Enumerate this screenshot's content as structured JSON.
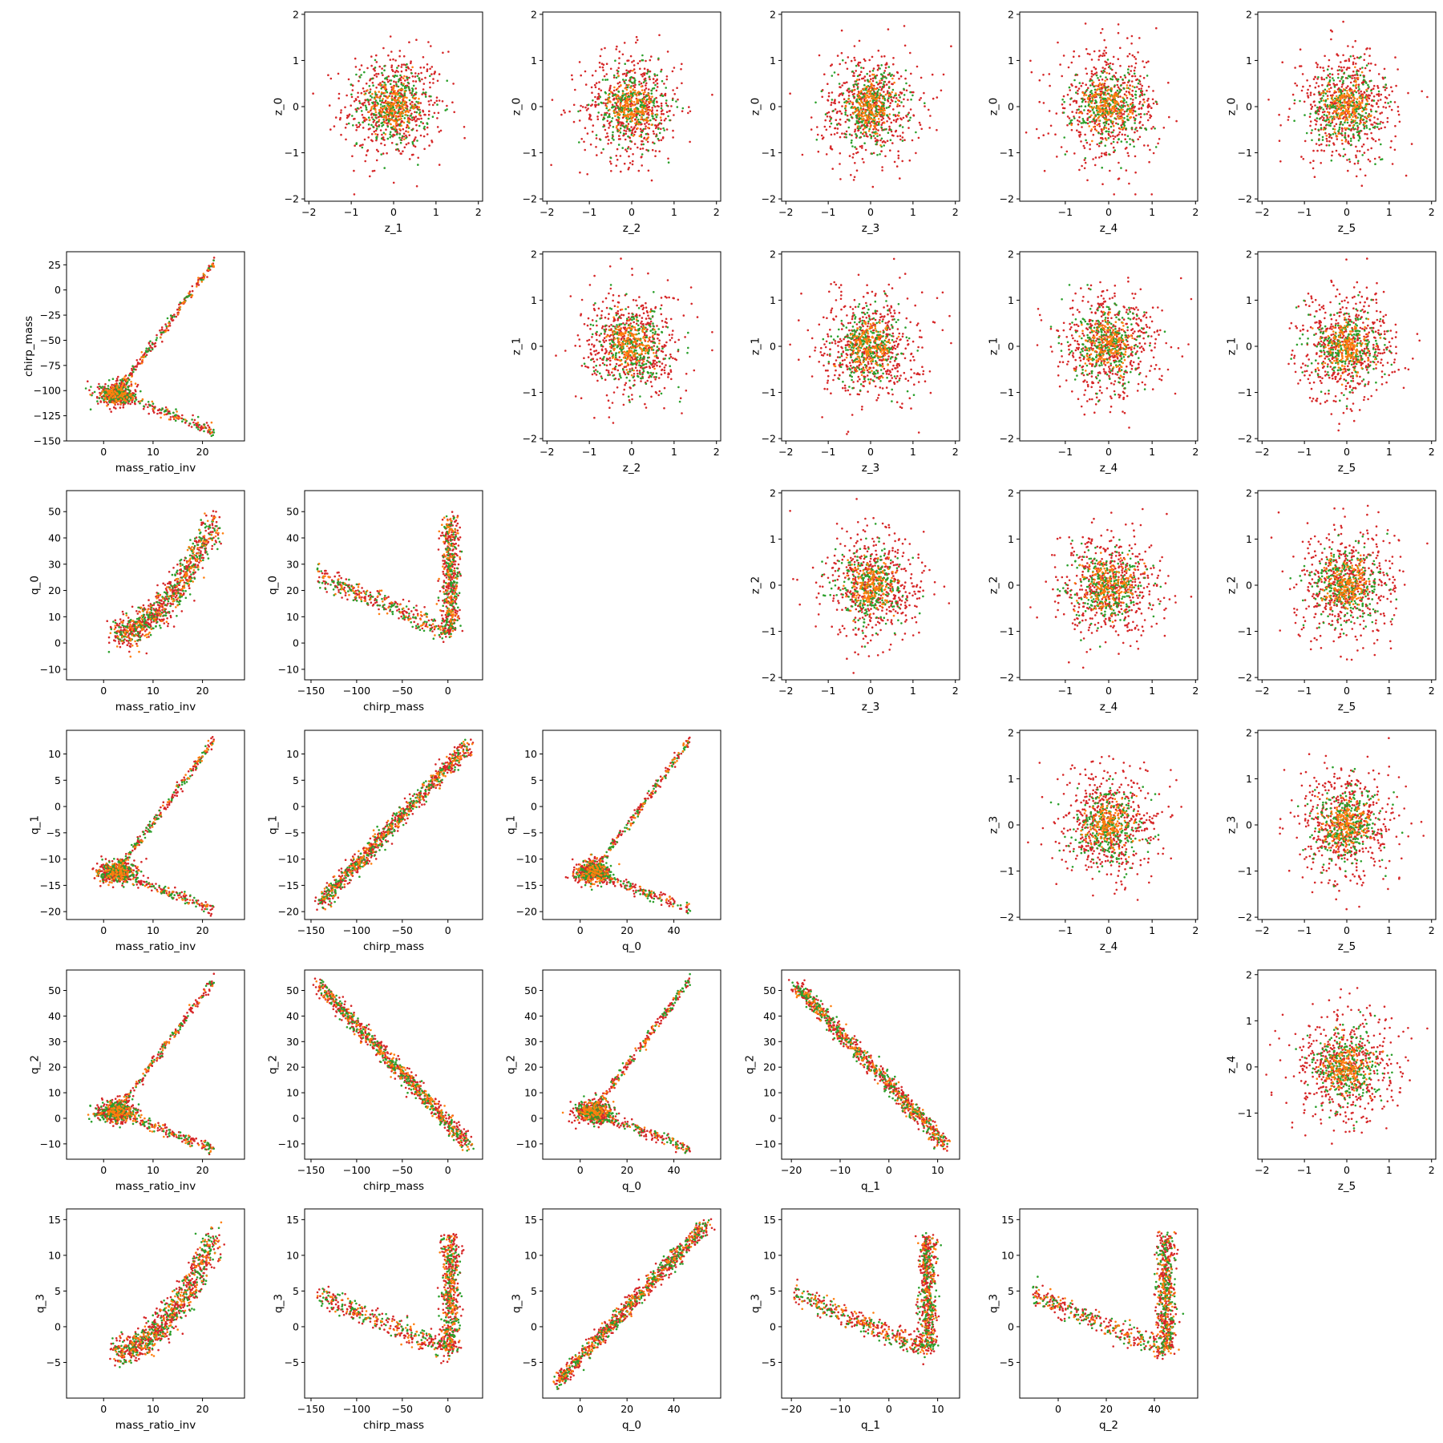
{
  "figure": {
    "description_free": true,
    "type": "pairwise scatter matrix"
  },
  "colors": {
    "series_1": "#d62728",
    "series_2": "#2ca02c",
    "series_3": "#ff7f0e",
    "axes": "#000000",
    "background": "#ffffff"
  },
  "chart_data": [
    {
      "type": "scatter",
      "xlabel": "z_1",
      "ylabel": "z_0",
      "kind": "gauss",
      "xticks": [
        "−2",
        "−1",
        "0",
        "1",
        "2"
      ],
      "yticks": [
        "−2",
        "−1",
        "0",
        "1",
        "2"
      ],
      "xlim": [
        -2.1,
        2.1
      ],
      "ylim": [
        -2.05,
        2.05
      ],
      "xtick_values": [
        -2,
        -1,
        0,
        1,
        2
      ],
      "ytick_values": [
        -2,
        -1,
        0,
        1,
        2
      ]
    },
    {
      "type": "scatter",
      "xlabel": "z_2",
      "ylabel": "z_0",
      "kind": "gauss",
      "xticks": [
        "−2",
        "−1",
        "0",
        "1",
        "2"
      ],
      "yticks": [
        "−2",
        "−1",
        "0",
        "1",
        "2"
      ],
      "xlim": [
        -2.1,
        2.1
      ],
      "ylim": [
        -2.05,
        2.05
      ],
      "xtick_values": [
        -2,
        -1,
        0,
        1,
        2
      ],
      "ytick_values": [
        -2,
        -1,
        0,
        1,
        2
      ]
    },
    {
      "type": "scatter",
      "xlabel": "z_3",
      "ylabel": "z_0",
      "kind": "gauss",
      "xticks": [
        "−2",
        "−1",
        "0",
        "1",
        "2"
      ],
      "yticks": [
        "−2",
        "−1",
        "0",
        "1",
        "2"
      ],
      "xlim": [
        -2.1,
        2.1
      ],
      "ylim": [
        -2.05,
        2.05
      ],
      "xtick_values": [
        -2,
        -1,
        0,
        1,
        2
      ],
      "ytick_values": [
        -2,
        -1,
        0,
        1,
        2
      ]
    },
    {
      "type": "scatter",
      "xlabel": "z_4",
      "ylabel": "z_0",
      "kind": "gauss",
      "xticks": [
        "−1",
        "0",
        "1",
        "2"
      ],
      "yticks": [
        "−2",
        "−1",
        "0",
        "1",
        "2"
      ],
      "xlim": [
        -2.05,
        2.05
      ],
      "ylim": [
        -2.05,
        2.05
      ],
      "xtick_values": [
        -1,
        0,
        1,
        2
      ],
      "ytick_values": [
        -2,
        -1,
        0,
        1,
        2
      ]
    },
    {
      "type": "scatter",
      "xlabel": "z_5",
      "ylabel": "z_0",
      "kind": "gauss",
      "xticks": [
        "−2",
        "−1",
        "0",
        "1",
        "2"
      ],
      "yticks": [
        "−2",
        "−1",
        "0",
        "1",
        "2"
      ],
      "xlim": [
        -2.1,
        2.1
      ],
      "ylim": [
        -2.05,
        2.05
      ],
      "xtick_values": [
        -2,
        -1,
        0,
        1,
        2
      ],
      "ytick_values": [
        -2,
        -1,
        0,
        1,
        2
      ]
    },
    {
      "type": "scatter",
      "xlabel": "mass_ratio_inv",
      "ylabel": "chirp_mass",
      "kind": "fork",
      "xticks": [
        "0",
        "10",
        "20"
      ],
      "yticks": [
        "−150",
        "−125",
        "−100",
        "−75",
        "−50",
        "−25",
        "0",
        "25"
      ],
      "xlim": [
        -7.5,
        28.5
      ],
      "ylim": [
        -150,
        38
      ],
      "xtick_values": [
        0,
        10,
        20
      ],
      "ytick_values": [
        -150,
        -125,
        -100,
        -75,
        -50,
        -25,
        0,
        25
      ]
    },
    {
      "type": "scatter",
      "xlabel": "z_2",
      "ylabel": "z_1",
      "kind": "gauss",
      "xticks": [
        "−2",
        "−1",
        "0",
        "1",
        "2"
      ],
      "yticks": [
        "−2",
        "−1",
        "0",
        "1",
        "2"
      ],
      "xlim": [
        -2.1,
        2.1
      ],
      "ylim": [
        -2.05,
        2.05
      ],
      "xtick_values": [
        -2,
        -1,
        0,
        1,
        2
      ],
      "ytick_values": [
        -2,
        -1,
        0,
        1,
        2
      ]
    },
    {
      "type": "scatter",
      "xlabel": "z_3",
      "ylabel": "z_1",
      "kind": "gauss",
      "xticks": [
        "−2",
        "−1",
        "0",
        "1",
        "2"
      ],
      "yticks": [
        "−2",
        "−1",
        "0",
        "1",
        "2"
      ],
      "xlim": [
        -2.1,
        2.1
      ],
      "ylim": [
        -2.05,
        2.05
      ],
      "xtick_values": [
        -2,
        -1,
        0,
        1,
        2
      ],
      "ytick_values": [
        -2,
        -1,
        0,
        1,
        2
      ]
    },
    {
      "type": "scatter",
      "xlabel": "z_4",
      "ylabel": "z_1",
      "kind": "gauss",
      "xticks": [
        "−1",
        "0",
        "1",
        "2"
      ],
      "yticks": [
        "−2",
        "−1",
        "0",
        "1",
        "2"
      ],
      "xlim": [
        -2.05,
        2.05
      ],
      "ylim": [
        -2.05,
        2.05
      ],
      "xtick_values": [
        -1,
        0,
        1,
        2
      ],
      "ytick_values": [
        -2,
        -1,
        0,
        1,
        2
      ]
    },
    {
      "type": "scatter",
      "xlabel": "z_5",
      "ylabel": "z_1",
      "kind": "gauss",
      "xticks": [
        "−2",
        "−1",
        "0",
        "1",
        "2"
      ],
      "yticks": [
        "−2",
        "−1",
        "0",
        "1",
        "2"
      ],
      "xlim": [
        -2.1,
        2.1
      ],
      "ylim": [
        -2.05,
        2.05
      ],
      "xtick_values": [
        -2,
        -1,
        0,
        1,
        2
      ],
      "ytick_values": [
        -2,
        -1,
        0,
        1,
        2
      ]
    },
    {
      "type": "scatter",
      "xlabel": "mass_ratio_inv",
      "ylabel": "q_0",
      "kind": "banana",
      "xticks": [
        "0",
        "10",
        "20"
      ],
      "yticks": [
        "−10",
        "0",
        "10",
        "20",
        "30",
        "40",
        "50"
      ],
      "xlim": [
        -7.5,
        28.5
      ],
      "ylim": [
        -14,
        58
      ],
      "xtick_values": [
        0,
        10,
        20
      ],
      "ytick_values": [
        -10,
        0,
        10,
        20,
        30,
        40,
        50
      ]
    },
    {
      "type": "scatter",
      "xlabel": "chirp_mass",
      "ylabel": "q_0",
      "kind": "vee",
      "xticks": [
        "−150",
        "−100",
        "−50",
        "0"
      ],
      "yticks": [
        "−10",
        "0",
        "10",
        "20",
        "30",
        "40",
        "50"
      ],
      "xlim": [
        -157,
        38
      ],
      "ylim": [
        -14,
        58
      ],
      "xtick_values": [
        -150,
        -100,
        -50,
        0
      ],
      "ytick_values": [
        -10,
        0,
        10,
        20,
        30,
        40,
        50
      ]
    },
    {
      "type": "scatter",
      "xlabel": "z_3",
      "ylabel": "z_2",
      "kind": "gauss",
      "xticks": [
        "−2",
        "−1",
        "0",
        "1",
        "2"
      ],
      "yticks": [
        "−2",
        "−1",
        "0",
        "1",
        "2"
      ],
      "xlim": [
        -2.1,
        2.1
      ],
      "ylim": [
        -2.05,
        2.05
      ],
      "xtick_values": [
        -2,
        -1,
        0,
        1,
        2
      ],
      "ytick_values": [
        -2,
        -1,
        0,
        1,
        2
      ]
    },
    {
      "type": "scatter",
      "xlabel": "z_4",
      "ylabel": "z_2",
      "kind": "gauss",
      "xticks": [
        "−1",
        "0",
        "1",
        "2"
      ],
      "yticks": [
        "−2",
        "−1",
        "0",
        "1",
        "2"
      ],
      "xlim": [
        -2.05,
        2.05
      ],
      "ylim": [
        -2.05,
        2.05
      ],
      "xtick_values": [
        -1,
        0,
        1,
        2
      ],
      "ytick_values": [
        -2,
        -1,
        0,
        1,
        2
      ]
    },
    {
      "type": "scatter",
      "xlabel": "z_5",
      "ylabel": "z_2",
      "kind": "gauss",
      "xticks": [
        "−2",
        "−1",
        "0",
        "1",
        "2"
      ],
      "yticks": [
        "−2",
        "−1",
        "0",
        "1",
        "2"
      ],
      "xlim": [
        -2.1,
        2.1
      ],
      "ylim": [
        -2.05,
        2.05
      ],
      "xtick_values": [
        -2,
        -1,
        0,
        1,
        2
      ],
      "ytick_values": [
        -2,
        -1,
        0,
        1,
        2
      ]
    },
    {
      "type": "scatter",
      "xlabel": "mass_ratio_inv",
      "ylabel": "q_1",
      "kind": "fork",
      "xticks": [
        "0",
        "10",
        "20"
      ],
      "yticks": [
        "−20",
        "−15",
        "−10",
        "−5",
        "0",
        "5",
        "10"
      ],
      "xlim": [
        -7.5,
        28.5
      ],
      "ylim": [
        -21.5,
        14.5
      ],
      "xtick_values": [
        0,
        10,
        20
      ],
      "ytick_values": [
        -20,
        -15,
        -10,
        -5,
        0,
        5,
        10
      ]
    },
    {
      "type": "scatter",
      "xlabel": "chirp_mass",
      "ylabel": "q_1",
      "kind": "diag",
      "xticks": [
        "−150",
        "−100",
        "−50",
        "0"
      ],
      "yticks": [
        "−20",
        "−15",
        "−10",
        "−5",
        "0",
        "5",
        "10"
      ],
      "xlim": [
        -157,
        38
      ],
      "ylim": [
        -21.5,
        14.5
      ],
      "xtick_values": [
        -150,
        -100,
        -50,
        0
      ],
      "ytick_values": [
        -20,
        -15,
        -10,
        -5,
        0,
        5,
        10
      ]
    },
    {
      "type": "scatter",
      "xlabel": "q_0",
      "ylabel": "q_1",
      "kind": "fork",
      "xticks": [
        "0",
        "20",
        "40"
      ],
      "yticks": [
        "−20",
        "−15",
        "−10",
        "−5",
        "0",
        "5",
        "10"
      ],
      "xlim": [
        -16,
        60
      ],
      "ylim": [
        -21.5,
        14.5
      ],
      "xtick_values": [
        0,
        20,
        40
      ],
      "ytick_values": [
        -20,
        -15,
        -10,
        -5,
        0,
        5,
        10
      ]
    },
    {
      "type": "scatter",
      "xlabel": "z_4",
      "ylabel": "z_3",
      "kind": "gauss",
      "xticks": [
        "−1",
        "0",
        "1",
        "2"
      ],
      "yticks": [
        "−2",
        "−1",
        "0",
        "1",
        "2"
      ],
      "xlim": [
        -2.05,
        2.05
      ],
      "ylim": [
        -2.05,
        2.05
      ],
      "xtick_values": [
        -1,
        0,
        1,
        2
      ],
      "ytick_values": [
        -2,
        -1,
        0,
        1,
        2
      ]
    },
    {
      "type": "scatter",
      "xlabel": "z_5",
      "ylabel": "z_3",
      "kind": "gauss",
      "xticks": [
        "−2",
        "−1",
        "0",
        "1",
        "2"
      ],
      "yticks": [
        "−2",
        "−1",
        "0",
        "1",
        "2"
      ],
      "xlim": [
        -2.1,
        2.1
      ],
      "ylim": [
        -2.05,
        2.05
      ],
      "xtick_values": [
        -2,
        -1,
        0,
        1,
        2
      ],
      "ytick_values": [
        -2,
        -1,
        0,
        1,
        2
      ]
    },
    {
      "type": "scatter",
      "xlabel": "mass_ratio_inv",
      "ylabel": "q_2",
      "kind": "fork",
      "xticks": [
        "0",
        "10",
        "20"
      ],
      "yticks": [
        "−10",
        "0",
        "10",
        "20",
        "30",
        "40",
        "50"
      ],
      "xlim": [
        -7.5,
        28.5
      ],
      "ylim": [
        -16,
        58
      ],
      "xtick_values": [
        0,
        10,
        20
      ],
      "ytick_values": [
        -10,
        0,
        10,
        20,
        30,
        40,
        50
      ]
    },
    {
      "type": "scatter",
      "xlabel": "chirp_mass",
      "ylabel": "q_2",
      "kind": "diag",
      "xticks": [
        "−150",
        "−100",
        "−50",
        "0"
      ],
      "yticks": [
        "−10",
        "0",
        "10",
        "20",
        "30",
        "40",
        "50"
      ],
      "xlim": [
        -157,
        38
      ],
      "ylim": [
        -16,
        58
      ],
      "xtick_values": [
        -150,
        -100,
        -50,
        0
      ],
      "ytick_values": [
        -10,
        0,
        10,
        20,
        30,
        40,
        50
      ]
    },
    {
      "type": "scatter",
      "xlabel": "q_0",
      "ylabel": "q_2",
      "kind": "fork",
      "xticks": [
        "0",
        "20",
        "40"
      ],
      "yticks": [
        "−10",
        "0",
        "10",
        "20",
        "30",
        "40",
        "50"
      ],
      "xlim": [
        -16,
        60
      ],
      "ylim": [
        -16,
        58
      ],
      "xtick_values": [
        0,
        20,
        40
      ],
      "ytick_values": [
        -10,
        0,
        10,
        20,
        30,
        40,
        50
      ]
    },
    {
      "type": "scatter",
      "xlabel": "q_1",
      "ylabel": "q_2",
      "kind": "diag",
      "xticks": [
        "−20",
        "−10",
        "0",
        "10"
      ],
      "yticks": [
        "−10",
        "0",
        "10",
        "20",
        "30",
        "40",
        "50"
      ],
      "xlim": [
        -22,
        14.5
      ],
      "ylim": [
        -16,
        58
      ],
      "xtick_values": [
        -20,
        -10,
        0,
        10
      ],
      "ytick_values": [
        -10,
        0,
        10,
        20,
        30,
        40,
        50
      ]
    },
    {
      "type": "scatter",
      "xlabel": "z_5",
      "ylabel": "z_4",
      "kind": "gauss",
      "xticks": [
        "−2",
        "−1",
        "0",
        "1",
        "2"
      ],
      "yticks": [
        "−1",
        "0",
        "1",
        "2"
      ],
      "xlim": [
        -2.1,
        2.1
      ],
      "ylim": [
        -2.0,
        2.1
      ],
      "xtick_values": [
        -2,
        -1,
        0,
        1,
        2
      ],
      "ytick_values": [
        -1,
        0,
        1,
        2
      ]
    },
    {
      "type": "scatter",
      "xlabel": "mass_ratio_inv",
      "ylabel": "q_3",
      "kind": "banana",
      "xticks": [
        "0",
        "10",
        "20"
      ],
      "yticks": [
        "−5",
        "0",
        "5",
        "10",
        "15"
      ],
      "xlim": [
        -7.5,
        28.5
      ],
      "ylim": [
        -10,
        16.5
      ],
      "xtick_values": [
        0,
        10,
        20
      ],
      "ytick_values": [
        -5,
        0,
        5,
        10,
        15
      ]
    },
    {
      "type": "scatter",
      "xlabel": "chirp_mass",
      "ylabel": "q_3",
      "kind": "vee",
      "xticks": [
        "−150",
        "−100",
        "−50",
        "0"
      ],
      "yticks": [
        "−5",
        "0",
        "5",
        "10",
        "15"
      ],
      "xlim": [
        -157,
        38
      ],
      "ylim": [
        -10,
        16.5
      ],
      "xtick_values": [
        -150,
        -100,
        -50,
        0
      ],
      "ytick_values": [
        -5,
        0,
        5,
        10,
        15
      ]
    },
    {
      "type": "scatter",
      "xlabel": "q_0",
      "ylabel": "q_3",
      "kind": "diag",
      "xticks": [
        "0",
        "20",
        "40"
      ],
      "yticks": [
        "−5",
        "0",
        "5",
        "10",
        "15"
      ],
      "xlim": [
        -16,
        60
      ],
      "ylim": [
        -10,
        16.5
      ],
      "xtick_values": [
        0,
        20,
        40
      ],
      "ytick_values": [
        -5,
        0,
        5,
        10,
        15
      ]
    },
    {
      "type": "scatter",
      "xlabel": "q_1",
      "ylabel": "q_3",
      "kind": "vee",
      "xticks": [
        "−20",
        "−10",
        "0",
        "10"
      ],
      "yticks": [
        "−5",
        "0",
        "5",
        "10",
        "15"
      ],
      "xlim": [
        -22,
        14.5
      ],
      "ylim": [
        -10,
        16.5
      ],
      "xtick_values": [
        -20,
        -10,
        0,
        10
      ],
      "ytick_values": [
        -5,
        0,
        5,
        10,
        15
      ]
    },
    {
      "type": "scatter",
      "xlabel": "q_2",
      "ylabel": "q_3",
      "kind": "vee",
      "xticks": [
        "0",
        "20",
        "40"
      ],
      "yticks": [
        "−5",
        "0",
        "5",
        "10",
        "15"
      ],
      "xlim": [
        -16,
        58
      ],
      "ylim": [
        -10,
        16.5
      ],
      "xtick_values": [
        0,
        20,
        40
      ],
      "ytick_values": [
        -5,
        0,
        5,
        10,
        15
      ]
    }
  ]
}
